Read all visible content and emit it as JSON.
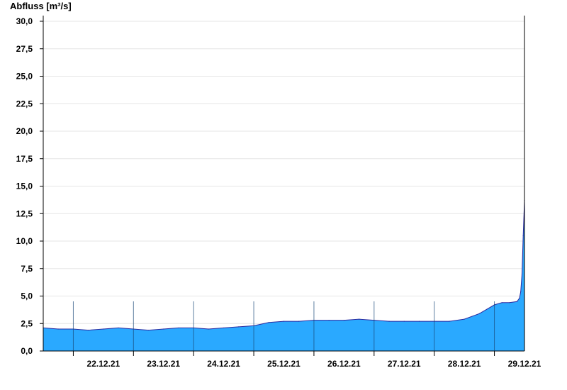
{
  "chart_data": {
    "type": "area",
    "title": "",
    "xlabel": "",
    "ylabel": "Abfluss [m³/s]",
    "ylim": [
      0,
      30
    ],
    "yticks": [
      "0,0",
      "2,5",
      "5,0",
      "7,5",
      "10,0",
      "12,5",
      "15,0",
      "17,5",
      "20,0",
      "22,5",
      "25,0",
      "27,5",
      "30,0"
    ],
    "xlim": [
      "21.12.21 12:00",
      "29.12.21 12:00"
    ],
    "x_day_labels": [
      "22.12.21",
      "23.12.21",
      "24.12.21",
      "25.12.21",
      "26.12.21",
      "27.12.21",
      "28.12.21",
      "29.12.21"
    ],
    "grid": true,
    "fill_color": "#2aa9ff",
    "line_color": "#2a2aa0",
    "x": [
      "21.12.21 12:00",
      "21.12.21 18:00",
      "22.12.21 00:00",
      "22.12.21 06:00",
      "22.12.21 12:00",
      "22.12.21 18:00",
      "23.12.21 00:00",
      "23.12.21 06:00",
      "23.12.21 12:00",
      "23.12.21 18:00",
      "24.12.21 00:00",
      "24.12.21 06:00",
      "24.12.21 12:00",
      "24.12.21 18:00",
      "25.12.21 00:00",
      "25.12.21 06:00",
      "25.12.21 12:00",
      "25.12.21 18:00",
      "26.12.21 00:00",
      "26.12.21 06:00",
      "26.12.21 12:00",
      "26.12.21 18:00",
      "27.12.21 00:00",
      "27.12.21 06:00",
      "27.12.21 12:00",
      "27.12.21 18:00",
      "28.12.21 00:00",
      "28.12.21 06:00",
      "28.12.21 12:00",
      "28.12.21 18:00",
      "29.12.21 00:00",
      "29.12.21 03:00",
      "29.12.21 06:00",
      "29.12.21 09:00",
      "29.12.21 10:00",
      "29.12.21 10:30",
      "29.12.21 11:00",
      "29.12.21 11:30",
      "29.12.21 12:00"
    ],
    "values": [
      2.1,
      2.0,
      2.0,
      1.9,
      2.0,
      2.1,
      2.0,
      1.9,
      2.0,
      2.1,
      2.1,
      2.0,
      2.1,
      2.2,
      2.3,
      2.6,
      2.7,
      2.7,
      2.8,
      2.8,
      2.8,
      2.9,
      2.8,
      2.7,
      2.7,
      2.7,
      2.7,
      2.7,
      2.9,
      3.4,
      4.2,
      4.4,
      4.4,
      4.5,
      4.8,
      5.4,
      7.0,
      10.5,
      13.7
    ]
  }
}
